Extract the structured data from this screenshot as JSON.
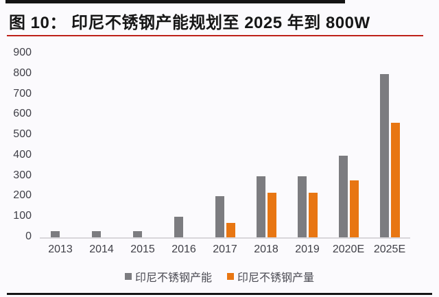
{
  "figure": {
    "title": "图 10： 印尼不锈钢产能规划至 2025 年到 800W",
    "accent_red": "#BE2018",
    "rule_black": "#141414"
  },
  "chart_data": {
    "type": "bar",
    "title": "图 10： 印尼不锈钢产能规划至 2025 年到 800W",
    "categories": [
      "2013",
      "2014",
      "2015",
      "2016",
      "2017",
      "2018",
      "2019",
      "2020E",
      "2025E"
    ],
    "series": [
      {
        "key": "capacity",
        "name": "印尼不锈钢产能",
        "color": "#7C7C80",
        "values": [
          30,
          30,
          30,
          100,
          200,
          300,
          300,
          400,
          800
        ]
      },
      {
        "key": "output",
        "name": "印尼不锈钢产量",
        "color": "#E87612",
        "values": [
          0,
          0,
          0,
          0,
          70,
          220,
          220,
          280,
          560
        ]
      }
    ],
    "xlabel": "",
    "ylabel": "",
    "ylim": [
      0,
      900
    ],
    "ytick_step": 100,
    "yticks_top_to_bottom": [
      "900",
      "800",
      "700",
      "600",
      "500",
      "400",
      "300",
      "200",
      "100",
      "0"
    ],
    "grid": false,
    "legend_position": "bottom"
  }
}
